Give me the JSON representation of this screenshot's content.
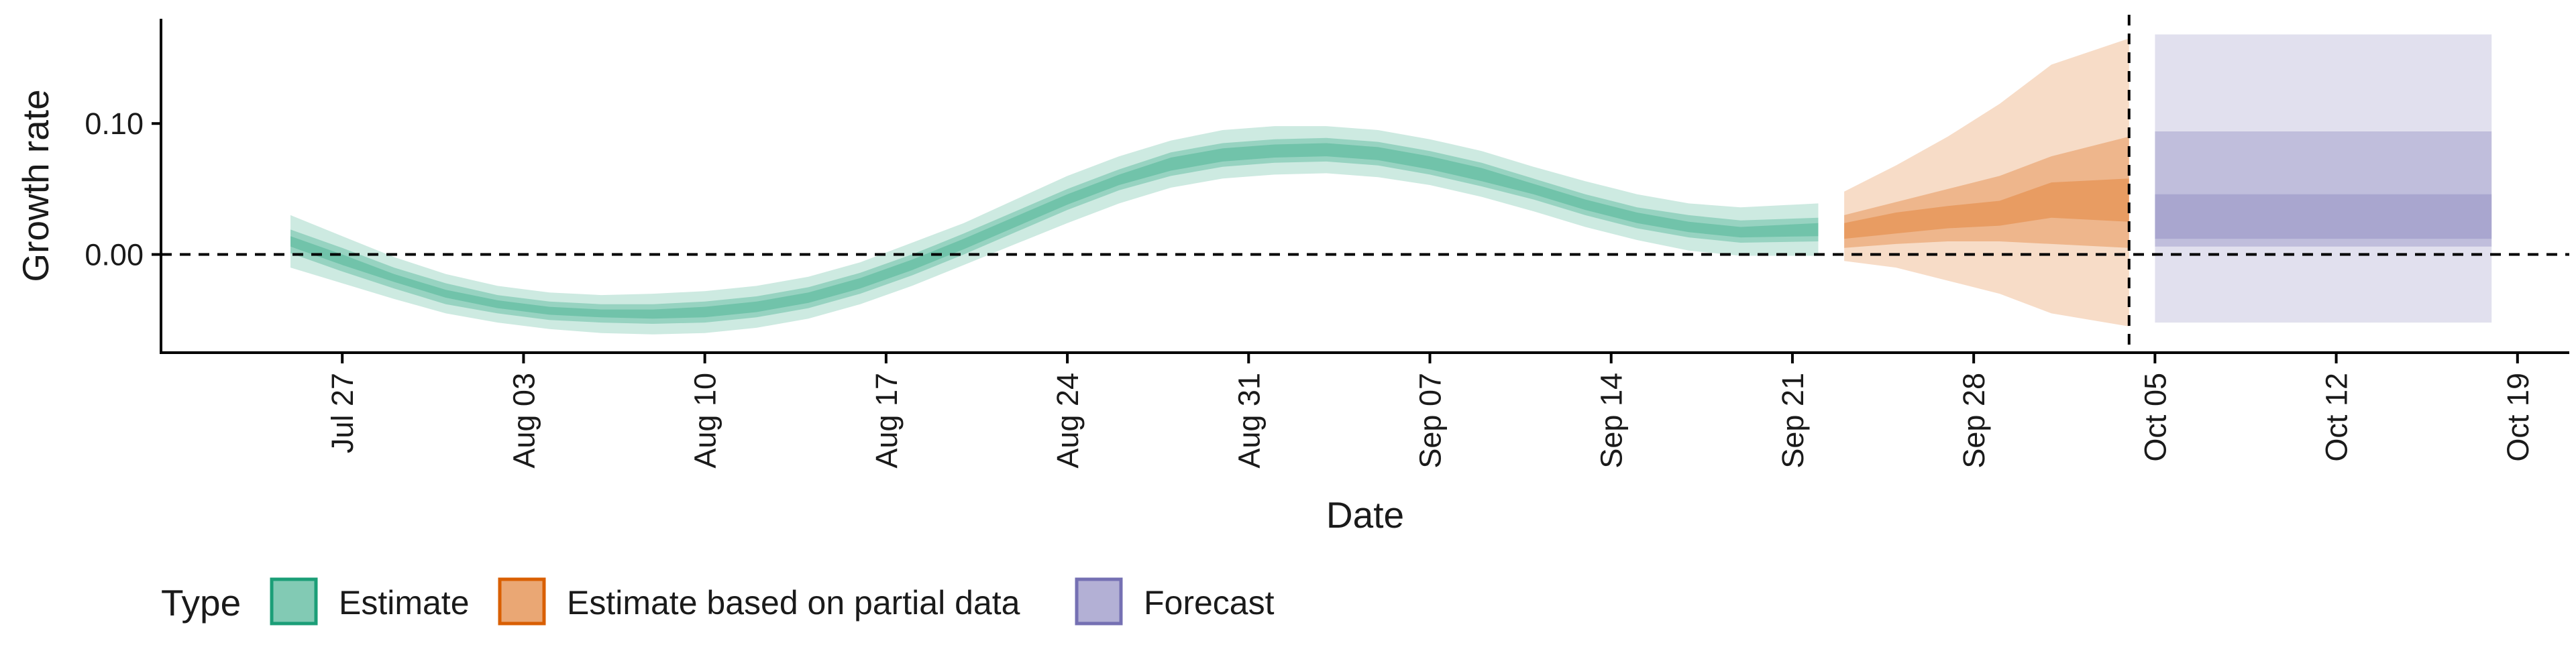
{
  "chart_data": {
    "type": "area",
    "xlabel": "Date",
    "ylabel": "Growth rate",
    "x_ticks": [
      "Jul 27",
      "Aug 03",
      "Aug 10",
      "Aug 17",
      "Aug 24",
      "Aug 31",
      "Sep 07",
      "Sep 14",
      "Sep 21",
      "Sep 28",
      "Oct 05",
      "Oct 12",
      "Oct 19"
    ],
    "y_ticks": [
      "0.00",
      "0.10"
    ],
    "ylim": [
      -0.075,
      0.18
    ],
    "xlim": [
      "2020-07-20",
      "2020-10-21"
    ],
    "grid": false,
    "reference_lines": [
      {
        "axis": "y",
        "value": 0.0,
        "style": "dashed"
      },
      {
        "axis": "x",
        "value": "2020-10-04",
        "style": "dashed"
      }
    ],
    "legend": {
      "title": "Type",
      "position": "bottom-left",
      "items": [
        {
          "label": "Estimate",
          "color": "#1b9e77"
        },
        {
          "label": "Estimate based on partial data",
          "color": "#d95f02"
        },
        {
          "label": "Forecast",
          "color": "#7570b3"
        }
      ]
    },
    "series": [
      {
        "name": "Estimate",
        "color": "#1b9e77",
        "x": [
          "2020-07-25",
          "2020-07-27",
          "2020-07-29",
          "2020-07-31",
          "2020-08-02",
          "2020-08-04",
          "2020-08-06",
          "2020-08-08",
          "2020-08-10",
          "2020-08-12",
          "2020-08-14",
          "2020-08-16",
          "2020-08-18",
          "2020-08-20",
          "2020-08-22",
          "2020-08-24",
          "2020-08-26",
          "2020-08-28",
          "2020-08-30",
          "2020-09-01",
          "2020-09-03",
          "2020-09-05",
          "2020-09-07",
          "2020-09-09",
          "2020-09-11",
          "2020-09-13",
          "2020-09-15",
          "2020-09-17",
          "2020-09-19",
          "2020-09-22"
        ],
        "median": [
          0.01,
          -0.004,
          -0.018,
          -0.03,
          -0.038,
          -0.043,
          -0.045,
          -0.045,
          -0.044,
          -0.04,
          -0.033,
          -0.022,
          -0.008,
          0.008,
          0.025,
          0.042,
          0.057,
          0.069,
          0.076,
          0.079,
          0.08,
          0.077,
          0.07,
          0.061,
          0.05,
          0.038,
          0.028,
          0.021,
          0.017,
          0.019
        ],
        "lower_90": [
          -0.01,
          -0.022,
          -0.034,
          -0.045,
          -0.052,
          -0.057,
          -0.06,
          -0.061,
          -0.06,
          -0.056,
          -0.049,
          -0.038,
          -0.024,
          -0.008,
          0.008,
          0.024,
          0.039,
          0.051,
          0.058,
          0.061,
          0.062,
          0.059,
          0.053,
          0.044,
          0.033,
          0.021,
          0.011,
          0.003,
          -0.001,
          -0.001
        ],
        "upper_90": [
          0.03,
          0.014,
          -0.002,
          -0.015,
          -0.024,
          -0.029,
          -0.031,
          -0.03,
          -0.028,
          -0.024,
          -0.017,
          -0.006,
          0.009,
          0.024,
          0.042,
          0.06,
          0.075,
          0.087,
          0.095,
          0.098,
          0.098,
          0.095,
          0.088,
          0.079,
          0.067,
          0.056,
          0.046,
          0.039,
          0.036,
          0.039
        ],
        "lower_50": [
          0.001,
          -0.013,
          -0.026,
          -0.038,
          -0.045,
          -0.05,
          -0.052,
          -0.053,
          -0.052,
          -0.048,
          -0.041,
          -0.03,
          -0.016,
          0.0,
          0.017,
          0.034,
          0.049,
          0.06,
          0.067,
          0.07,
          0.071,
          0.068,
          0.061,
          0.052,
          0.042,
          0.03,
          0.02,
          0.013,
          0.009,
          0.01
        ],
        "upper_50": [
          0.019,
          0.005,
          -0.01,
          -0.022,
          -0.031,
          -0.036,
          -0.038,
          -0.038,
          -0.036,
          -0.032,
          -0.025,
          -0.014,
          0.0,
          0.016,
          0.033,
          0.05,
          0.065,
          0.078,
          0.085,
          0.088,
          0.089,
          0.086,
          0.079,
          0.07,
          0.058,
          0.046,
          0.036,
          0.03,
          0.026,
          0.028
        ],
        "lower_20": [
          0.006,
          -0.008,
          -0.021,
          -0.033,
          -0.041,
          -0.046,
          -0.048,
          -0.049,
          -0.048,
          -0.044,
          -0.037,
          -0.026,
          -0.012,
          0.004,
          0.021,
          0.038,
          0.053,
          0.064,
          0.071,
          0.074,
          0.075,
          0.072,
          0.065,
          0.056,
          0.046,
          0.034,
          0.024,
          0.017,
          0.013,
          0.014
        ],
        "upper_20": [
          0.014,
          0.0,
          -0.015,
          -0.027,
          -0.035,
          -0.04,
          -0.042,
          -0.042,
          -0.04,
          -0.036,
          -0.029,
          -0.018,
          -0.004,
          0.012,
          0.029,
          0.046,
          0.061,
          0.074,
          0.081,
          0.084,
          0.085,
          0.082,
          0.075,
          0.066,
          0.054,
          0.042,
          0.032,
          0.025,
          0.021,
          0.024
        ]
      },
      {
        "name": "Estimate based on partial data",
        "color": "#d95f02",
        "x": [
          "2020-09-23",
          "2020-09-25",
          "2020-09-27",
          "2020-09-29",
          "2020-10-01",
          "2020-10-04"
        ],
        "median": [
          0.018,
          0.024,
          0.029,
          0.032,
          0.04,
          0.045
        ],
        "lower_90": [
          -0.005,
          -0.01,
          -0.02,
          -0.03,
          -0.045,
          -0.055
        ],
        "upper_90": [
          0.048,
          0.068,
          0.09,
          0.115,
          0.145,
          0.165
        ],
        "lower_50": [
          0.005,
          0.008,
          0.01,
          0.01,
          0.008,
          0.005
        ],
        "upper_50": [
          0.03,
          0.04,
          0.05,
          0.06,
          0.075,
          0.09
        ],
        "lower_20": [
          0.012,
          0.016,
          0.02,
          0.022,
          0.028,
          0.025
        ],
        "upper_20": [
          0.024,
          0.032,
          0.037,
          0.041,
          0.055,
          0.058
        ]
      },
      {
        "name": "Forecast",
        "color": "#7570b3",
        "x": [
          "2020-10-05",
          "2020-10-18"
        ],
        "median": [
          0.028,
          0.028
        ],
        "lower_90": [
          -0.052,
          -0.052
        ],
        "upper_90": [
          0.168,
          0.168
        ],
        "lower_50": [
          0.006,
          0.006
        ],
        "upper_50": [
          0.094,
          0.094
        ],
        "lower_20": [
          0.012,
          0.012
        ],
        "upper_20": [
          0.046,
          0.046
        ]
      }
    ]
  }
}
